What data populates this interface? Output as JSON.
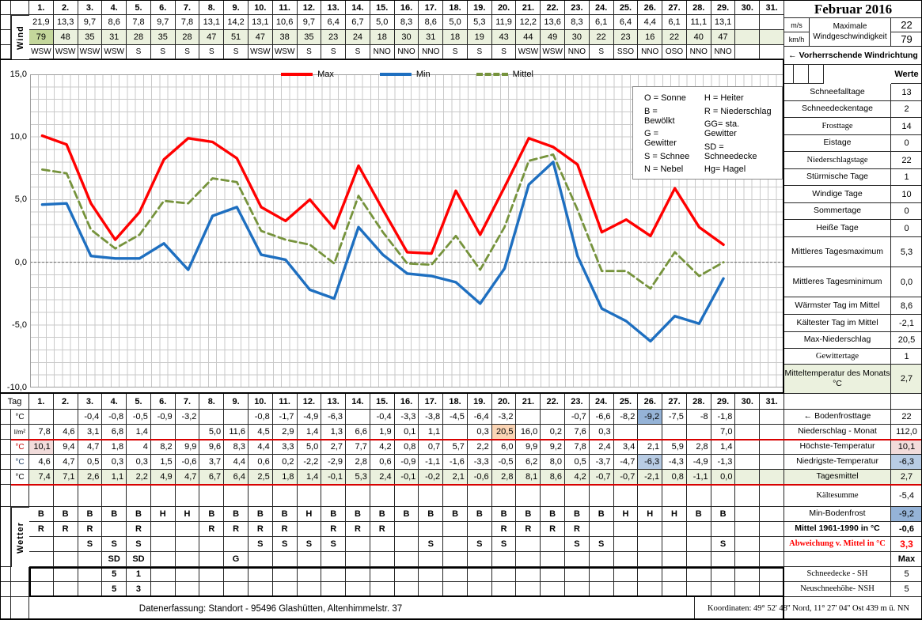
{
  "title": "Februar 2016",
  "days": [
    "1.",
    "2.",
    "3.",
    "4.",
    "5.",
    "6.",
    "7.",
    "8.",
    "9.",
    "10.",
    "11.",
    "12.",
    "13.",
    "14.",
    "15.",
    "16.",
    "17.",
    "18.",
    "19.",
    "20.",
    "21.",
    "22.",
    "23.",
    "24.",
    "25.",
    "26.",
    "27.",
    "28.",
    "29.",
    "30.",
    "31."
  ],
  "wind": {
    "row_label": "Wind",
    "units": {
      "ms": "m/s",
      "kmh": "km/h"
    },
    "ms": [
      "21,9",
      "13,3",
      "9,7",
      "8,6",
      "7,8",
      "9,7",
      "7,8",
      "13,1",
      "14,2",
      "13,1",
      "10,6",
      "9,7",
      "6,4",
      "6,7",
      "5,0",
      "8,3",
      "8,6",
      "5,0",
      "5,3",
      "11,9",
      "12,2",
      "13,6",
      "8,3",
      "6,1",
      "6,4",
      "4,4",
      "6,1",
      "11,1",
      "13,1",
      "",
      ""
    ],
    "kmh": [
      "79",
      "48",
      "35",
      "31",
      "28",
      "35",
      "28",
      "47",
      "51",
      "47",
      "38",
      "35",
      "23",
      "24",
      "18",
      "30",
      "31",
      "18",
      "19",
      "43",
      "44",
      "49",
      "30",
      "22",
      "23",
      "16",
      "22",
      "40",
      "47",
      "",
      ""
    ],
    "dir": [
      "WSW",
      "WSW",
      "WSW",
      "WSW",
      "S",
      "S",
      "S",
      "S",
      "S",
      "WSW",
      "WSW",
      "S",
      "S",
      "S",
      "NNO",
      "NNO",
      "NNO",
      "S",
      "S",
      "S",
      "WSW",
      "WSW",
      "NNO",
      "S",
      "SSO",
      "NNO",
      "OSO",
      "NNO",
      "NNO",
      "",
      ""
    ],
    "max_label": "Maximale Windgeschwindigkeit",
    "max_ms": "22",
    "max_kmh": "79",
    "direction_note": "←  Vorherrschende Windrichtung"
  },
  "chart_data": {
    "type": "line",
    "title": "",
    "x_days": [
      1,
      2,
      3,
      4,
      5,
      6,
      7,
      8,
      9,
      10,
      11,
      12,
      13,
      14,
      15,
      16,
      17,
      18,
      19,
      20,
      21,
      22,
      23,
      24,
      25,
      26,
      27,
      28,
      29
    ],
    "x_range_days": 31,
    "series": [
      {
        "name": "Max",
        "color": "#ff0000",
        "line_style": "solid",
        "values": [
          10.1,
          9.4,
          4.7,
          1.8,
          4,
          8.2,
          9.9,
          9.6,
          8.3,
          4.4,
          3.3,
          5,
          2.7,
          7.7,
          4.2,
          0.8,
          0.7,
          5.7,
          2.2,
          6,
          9.9,
          9.2,
          7.8,
          2.4,
          3.4,
          2.1,
          5.9,
          2.8,
          1.4
        ]
      },
      {
        "name": "Min",
        "color": "#1e6fc0",
        "line_style": "solid",
        "values": [
          4.6,
          4.7,
          0.5,
          0.3,
          0.3,
          1.5,
          -0.6,
          3.7,
          4.4,
          0.6,
          0.2,
          -2.2,
          -2.9,
          2.8,
          0.6,
          -0.9,
          -1.1,
          -1.6,
          -3.3,
          -0.5,
          6.2,
          8,
          0.5,
          -3.7,
          -4.7,
          -6.3,
          -4.3,
          -4.9,
          -1.3
        ]
      },
      {
        "name": "Mittel",
        "color": "#76933c",
        "line_style": "dashed",
        "values": [
          7.4,
          7.1,
          2.6,
          1.1,
          2.2,
          4.9,
          4.7,
          6.7,
          6.4,
          2.5,
          1.8,
          1.4,
          -0.1,
          5.3,
          2.4,
          -0.1,
          -0.2,
          2.1,
          -0.6,
          2.8,
          8.1,
          8.6,
          4.2,
          -0.7,
          -0.7,
          -2.1,
          0.8,
          -1.1,
          0
        ]
      }
    ],
    "ylim": [
      -10,
      15
    ],
    "yticks": [
      {
        "v": 15,
        "label": "15,0"
      },
      {
        "v": 10,
        "label": "10,0"
      },
      {
        "v": 5,
        "label": "5,0"
      },
      {
        "v": 0,
        "label": "0,0"
      },
      {
        "v": -5,
        "label": "-5,0"
      },
      {
        "v": -10,
        "label": "-10,0"
      }
    ],
    "grid": true,
    "legend_position": "top-center"
  },
  "weather_codes": {
    "col1": [
      "O = Sonne",
      "B = Bewölkt",
      "G = Gewitter",
      "S = Schnee",
      "N = Nebel"
    ],
    "col2": [
      "H = Heiter",
      "R = Niederschlag",
      "GG= sta. Gewitter",
      "SD = Schneedecke",
      "Hg= Hagel"
    ]
  },
  "stats": {
    "header": "Werte",
    "rows": [
      {
        "label": "Schneefalltage",
        "value": "13"
      },
      {
        "label": "Schneedeckentage",
        "value": "2"
      },
      {
        "label": "Frosttage",
        "value": "14",
        "serif": true
      },
      {
        "label": "Eistage",
        "value": "0"
      },
      {
        "label": "Niederschlagstage",
        "value": "22",
        "serif": true
      },
      {
        "label": "Stürmische Tage",
        "value": "1"
      },
      {
        "label": "Windige Tage",
        "value": "10"
      },
      {
        "label": "Sommertage",
        "value": "0"
      },
      {
        "label": "Heiße Tage",
        "value": "0"
      },
      {
        "label": "Mittleres Tagesmaximum",
        "value": "5,3"
      },
      {
        "label": "Mittleres Tagesminimum",
        "value": "0,0"
      },
      {
        "label": "Wärmster Tag im Mittel",
        "value": "8,6"
      },
      {
        "label": "Kältester Tag im Mittel",
        "value": "-2,1"
      },
      {
        "label": "Max-Niederschlag",
        "value": "20,5"
      },
      {
        "label": "Gewittertage",
        "value": "1",
        "serif": true
      },
      {
        "label": "Mitteltemperatur des Monats °C",
        "value": "2,7",
        "bg": "green"
      },
      {
        "label": "",
        "value": ""
      },
      {
        "label": "←  Bodenfrosttage",
        "value": "22"
      },
      {
        "label": "Niederschlag - Monat",
        "value": "112,0",
        "red_line": true
      },
      {
        "label": "Höchste-Temperatur",
        "value": "10,1",
        "vbg": "pink"
      },
      {
        "label": "Niedrigste-Temperatur",
        "value": "-6,3",
        "vbg": "bluelight"
      },
      {
        "label": "Tagesmittel",
        "value": "2,7",
        "bg": "green",
        "red_line": true
      },
      {
        "label": "Kältesumme",
        "value": "-5,4",
        "serif": true
      },
      {
        "label": "Min-Bodenfrost",
        "value": "-9,2",
        "vbg": "bluemid"
      },
      {
        "label": "Mittel 1961-1990 in °C",
        "value": "-0,6",
        "bold": true
      },
      {
        "label": "Abweichung v. Mittel in °C",
        "value": "3,3",
        "bold": true,
        "red": true,
        "serif": true
      },
      {
        "label": "",
        "value": "Max",
        "bold": true,
        "serif": true
      },
      {
        "label": "Schneedecke -   SH",
        "value": "5",
        "serif": true
      },
      {
        "label": "Neuschneehöhe- NSH",
        "value": "5",
        "serif": true
      }
    ]
  },
  "day_table": {
    "tag_label": "Tag",
    "wetter_label": "Wetter",
    "rows": [
      {
        "name": "bodenfrost",
        "unit": "°C",
        "unit_color": "#000000",
        "values": [
          "",
          "",
          "-0,4",
          "-0,8",
          "-0,5",
          "-0,9",
          "-3,2",
          "",
          "",
          "-0,8",
          "-1,7",
          "-4,9",
          "-6,3",
          "",
          "-0,4",
          "-3,3",
          "-3,8",
          "-4,5",
          "-6,4",
          "-3,2",
          "",
          "",
          "-0,7",
          "-6,6",
          "-8,2",
          "-9,2",
          "-7,5",
          "-8",
          "-1,8",
          "",
          ""
        ],
        "highlight": {
          "i": 25,
          "c": "bluemid"
        }
      },
      {
        "name": "niederschlag",
        "unit": "l/m²",
        "unit_color": "#000000",
        "values": [
          "7,8",
          "4,6",
          "3,1",
          "6,8",
          "1,4",
          "",
          "",
          "5,0",
          "11,6",
          "4,5",
          "2,9",
          "1,4",
          "1,3",
          "6,6",
          "1,9",
          "0,1",
          "1,1",
          "",
          "0,3",
          "20,5",
          "16,0",
          "0,2",
          "7,6",
          "0,3",
          "",
          "",
          "",
          "",
          "7,0",
          "",
          ""
        ],
        "highlight": {
          "i": 19,
          "c": "orange"
        }
      },
      {
        "name": "hoechste",
        "unit": "°C",
        "unit_color": "#c00000",
        "values": [
          "10,1",
          "9,4",
          "4,7",
          "1,8",
          "4",
          "8,2",
          "9,9",
          "9,6",
          "8,3",
          "4,4",
          "3,3",
          "5,0",
          "2,7",
          "7,7",
          "4,2",
          "0,8",
          "0,7",
          "5,7",
          "2,2",
          "6,0",
          "9,9",
          "9,2",
          "7,8",
          "2,4",
          "3,4",
          "2,1",
          "5,9",
          "2,8",
          "1,4",
          "",
          ""
        ],
        "highlight": {
          "i": 0,
          "c": "pink"
        }
      },
      {
        "name": "niedrigste",
        "unit": "°C",
        "unit_color": "#17365d",
        "values": [
          "4,6",
          "4,7",
          "0,5",
          "0,3",
          "0,3",
          "1,5",
          "-0,6",
          "3,7",
          "4,4",
          "0,6",
          "0,2",
          "-2,2",
          "-2,9",
          "2,8",
          "0,6",
          "-0,9",
          "-1,1",
          "-1,6",
          "-3,3",
          "-0,5",
          "6,2",
          "8,0",
          "0,5",
          "-3,7",
          "-4,7",
          "-6,3",
          "-4,3",
          "-4,9",
          "-1,3",
          "",
          ""
        ],
        "highlight": {
          "i": 25,
          "c": "bluelight"
        }
      },
      {
        "name": "tagesmittel",
        "unit": "°C",
        "unit_color": "#000000",
        "row_bg": "green",
        "values": [
          "7,4",
          "7,1",
          "2,6",
          "1,1",
          "2,2",
          "4,9",
          "4,7",
          "6,7",
          "6,4",
          "2,5",
          "1,8",
          "1,4",
          "-0,1",
          "5,3",
          "2,4",
          "-0,1",
          "-0,2",
          "2,1",
          "-0,6",
          "2,8",
          "8,1",
          "8,6",
          "4,2",
          "-0,7",
          "-0,7",
          "-2,1",
          "0,8",
          "-1,1",
          "0,0",
          "",
          ""
        ]
      }
    ],
    "weather_rows": [
      {
        "name": "sky",
        "values": [
          "B",
          "B",
          "B",
          "B",
          "B",
          "H",
          "H",
          "B",
          "B",
          "B",
          "B",
          "H",
          "B",
          "B",
          "B",
          "B",
          "B",
          "B",
          "B",
          "B",
          "B",
          "B",
          "B",
          "B",
          "H",
          "H",
          "H",
          "B",
          "B",
          "",
          ""
        ]
      },
      {
        "name": "rain",
        "values": [
          "R",
          "R",
          "R",
          "",
          "R",
          "",
          "",
          "R",
          "R",
          "R",
          "R",
          "",
          "R",
          "R",
          "R",
          "",
          "",
          "",
          "",
          "R",
          "R",
          "R",
          "R",
          "",
          "",
          "",
          "",
          "",
          "",
          "",
          ""
        ]
      },
      {
        "name": "snow",
        "values": [
          "",
          "",
          "S",
          "S",
          "S",
          "",
          "",
          "",
          "",
          "S",
          "S",
          "S",
          "S",
          "",
          "",
          "",
          "S",
          "",
          "S",
          "S",
          "",
          "",
          "S",
          "S",
          "",
          "",
          "",
          "",
          "S",
          "",
          ""
        ]
      },
      {
        "name": "special",
        "values": [
          "",
          "",
          "",
          "SD",
          "SD",
          "",
          "",
          "",
          "G",
          "",
          "",
          "",
          "",
          "",
          "",
          "",
          "",
          "",
          "",
          "",
          "",
          "",
          "",
          "",
          "",
          "",
          "",
          "",
          "",
          "",
          ""
        ]
      },
      {
        "name": "sh",
        "values": [
          "",
          "",
          "",
          "5",
          "1",
          "",
          "",
          "",
          "",
          "",
          "",
          "",
          "",
          "",
          "",
          "",
          "",
          "",
          "",
          "",
          "",
          "",
          "",
          "",
          "",
          "",
          "",
          "",
          "",
          "",
          ""
        ]
      },
      {
        "name": "nsh",
        "values": [
          "",
          "",
          "",
          "5",
          "3",
          "",
          "",
          "",
          "",
          "",
          "",
          "",
          "",
          "",
          "",
          "",
          "",
          "",
          "",
          "",
          "",
          "",
          "",
          "",
          "",
          "",
          "",
          "",
          "",
          "",
          ""
        ]
      }
    ]
  },
  "footer": {
    "left": "Datenerfassung:  Standort -  95496  Glashütten, Altenhimmelstr. 37",
    "right": "Koordinaten:  49° 52' 48'' Nord,   11° 27' 04'' Ost   439 m ü. NN"
  },
  "colors": {
    "green_light": "#ebf1de",
    "green_mid": "#c4d79b",
    "pink": "#f2dcdb",
    "bluelight": "#b8cce4",
    "bluemid": "#95b3d7",
    "orange": "#fbd5b5",
    "red_text": "#ff0000",
    "rule_red": "#d80000",
    "line_max": "#ff0000",
    "line_min": "#1e6fc0",
    "line_mittel": "#76933c",
    "grid": "#c9c9c9"
  }
}
